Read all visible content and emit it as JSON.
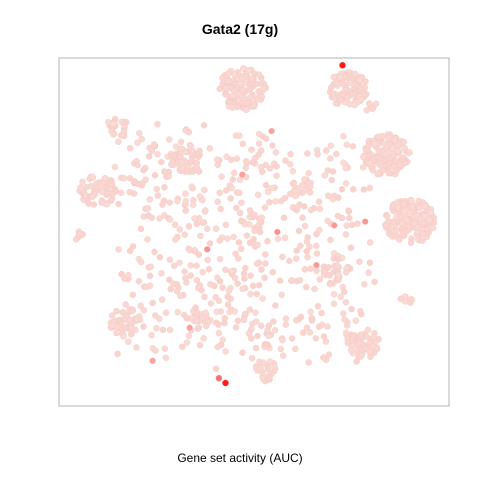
{
  "chart_data": {
    "type": "scatter",
    "title": "Gata2 (17g)",
    "xlabel": "Gene set activity (AUC)",
    "ylabel": "",
    "axes_visible": false,
    "frame": true,
    "grid": false,
    "legend": "none",
    "xlim": [
      -50,
      50
    ],
    "ylim": [
      -50,
      50
    ],
    "colors": {
      "low": "#fadbd6",
      "point_edge": "#f2c7c0",
      "high": "#ff1a1a",
      "frame": "#b3b3b3"
    },
    "clusters": [
      {
        "x": -3,
        "y": 41,
        "spread": 4.5,
        "n": 130
      },
      {
        "x": 24,
        "y": 41,
        "spread": 3.8,
        "n": 95
      },
      {
        "x": -18,
        "y": 21,
        "spread": 3.2,
        "n": 50
      },
      {
        "x": -35,
        "y": 30,
        "spread": 2.2,
        "n": 22
      },
      {
        "x": 34,
        "y": 22,
        "spread": 4.5,
        "n": 140
      },
      {
        "x": 40,
        "y": 3,
        "spread": 4.8,
        "n": 160
      },
      {
        "x": -40,
        "y": 12,
        "spread": 3.5,
        "n": 70
      },
      {
        "x": -33,
        "y": -26,
        "spread": 3.0,
        "n": 45
      },
      {
        "x": 28,
        "y": -32,
        "spread": 3.2,
        "n": 55
      },
      {
        "x": 3,
        "y": -40,
        "spread": 2.4,
        "n": 22
      },
      {
        "x": -14,
        "y": -25,
        "spread": 2.2,
        "n": 22
      },
      {
        "x": 0,
        "y": 3,
        "spread": 2.0,
        "n": 16
      },
      {
        "x": 12,
        "y": 13,
        "spread": 2.0,
        "n": 14
      },
      {
        "x": 20,
        "y": -12,
        "spread": 2.2,
        "n": 18
      },
      {
        "x": -45,
        "y": -1,
        "spread": 1.0,
        "n": 6
      },
      {
        "x": 30,
        "y": 36,
        "spread": 1.2,
        "n": 6
      },
      {
        "x": 39,
        "y": -20,
        "spread": 1.2,
        "n": 8
      }
    ],
    "background_points": 520,
    "background_range": {
      "x": [
        -38,
        32
      ],
      "y": [
        -40,
        32
      ]
    },
    "high_points": [
      {
        "x": 22.7,
        "y": 47.9,
        "auc": 1.0
      },
      {
        "x": -7.3,
        "y": -43.4,
        "auc": 1.0
      },
      {
        "x": -9.0,
        "y": -42.0,
        "auc": 0.55
      },
      {
        "x": 6.0,
        "y": 0.0,
        "auc": 0.4
      },
      {
        "x": -12.0,
        "y": -5.0,
        "auc": 0.4
      },
      {
        "x": 20.6,
        "y": 1.9,
        "auc": 0.35
      },
      {
        "x": 16.0,
        "y": -9.5,
        "auc": 0.35
      },
      {
        "x": -3.0,
        "y": 16.5,
        "auc": 0.3
      },
      {
        "x": 4.5,
        "y": 29.0,
        "auc": 0.3
      },
      {
        "x": -16.5,
        "y": -27.5,
        "auc": 0.3
      },
      {
        "x": -26.0,
        "y": -37.0,
        "auc": 0.3
      },
      {
        "x": 28.5,
        "y": 3.0,
        "auc": 0.35
      }
    ]
  }
}
